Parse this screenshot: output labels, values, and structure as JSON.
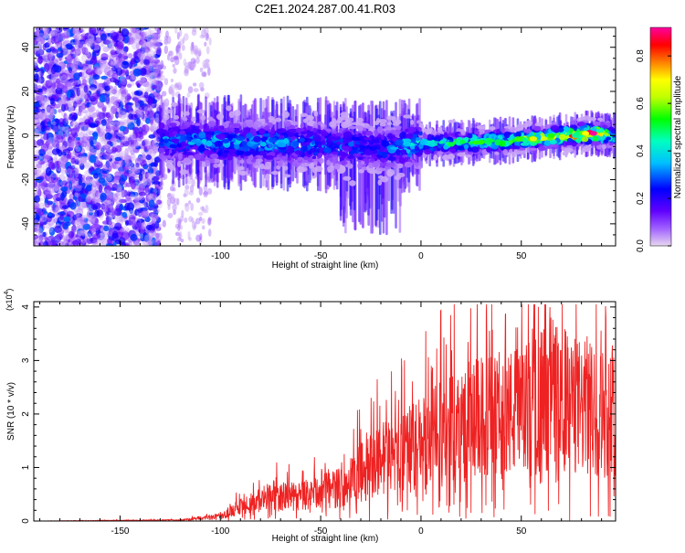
{
  "chart_data": [
    {
      "type": "heatmap",
      "title": "C2E1.2024.287.00.41.R03",
      "xlabel": "Height of straight line (km)",
      "ylabel": "Frequency (Hz)",
      "xlim": [
        -193,
        97
      ],
      "ylim": [
        -50,
        49
      ],
      "xticks": [
        -150,
        -100,
        -50,
        0,
        50
      ],
      "yticks": [
        -40,
        -20,
        0,
        20,
        40
      ],
      "colorbar": {
        "label": "Normalized spectral amplitude",
        "range": [
          0,
          0.92
        ],
        "ticks": [
          0.0,
          0.2,
          0.4,
          0.6,
          0.8
        ],
        "colormap": [
          "#e8d8f0",
          "#8800ff",
          "#0000ff",
          "#00e0ff",
          "#00ff40",
          "#ffff00",
          "#ff8000",
          "#ff0000",
          "#ff00a0"
        ]
      },
      "ridge": {
        "description_values": [
          {
            "x": -130,
            "f": -2,
            "amp": 0.3
          },
          {
            "x": -100,
            "f": -3,
            "amp": 0.35
          },
          {
            "x": -50,
            "f": -4,
            "amp": 0.3
          },
          {
            "x": -20,
            "f": -6,
            "amp": 0.25
          },
          {
            "x": 0,
            "f": -4,
            "amp": 0.4
          },
          {
            "x": 25,
            "f": -3,
            "amp": 0.5
          },
          {
            "x": 50,
            "f": -2,
            "amp": 0.55
          },
          {
            "x": 85,
            "f": 1,
            "amp": 0.9
          },
          {
            "x": 95,
            "f": 0,
            "amp": 0.5
          }
        ]
      }
    },
    {
      "type": "line",
      "xlabel": "Height of straight line (km)",
      "ylabel": "SNR (10 * v/v)",
      "yscale_label": "(x10",
      "yscale_exp": "4",
      "xlim": [
        -193,
        97
      ],
      "ylim": [
        0,
        4.1
      ],
      "xticks": [
        -150,
        -100,
        -50,
        0,
        50
      ],
      "yticks": [
        0,
        1,
        2,
        3,
        4
      ],
      "line_color": "#ee2222",
      "series": [
        {
          "envelope": [
            {
              "x": -193,
              "y": 0.0
            },
            {
              "x": -120,
              "y": 0.02
            },
            {
              "x": -100,
              "y": 0.1
            },
            {
              "x": -90,
              "y": 0.3
            },
            {
              "x": -75,
              "y": 0.5
            },
            {
              "x": -60,
              "y": 0.5
            },
            {
              "x": -50,
              "y": 0.6
            },
            {
              "x": -40,
              "y": 0.7
            },
            {
              "x": -30,
              "y": 1.0
            },
            {
              "x": -20,
              "y": 1.3
            },
            {
              "x": -10,
              "y": 1.4
            },
            {
              "x": 0,
              "y": 1.6
            },
            {
              "x": 10,
              "y": 1.8
            },
            {
              "x": 25,
              "y": 2.1
            },
            {
              "x": 40,
              "y": 2.2
            },
            {
              "x": 55,
              "y": 2.3
            },
            {
              "x": 65,
              "y": 2.7
            },
            {
              "x": 75,
              "y": 2.4
            },
            {
              "x": 85,
              "y": 2.3
            },
            {
              "x": 97,
              "y": 2.2
            }
          ]
        }
      ]
    }
  ]
}
